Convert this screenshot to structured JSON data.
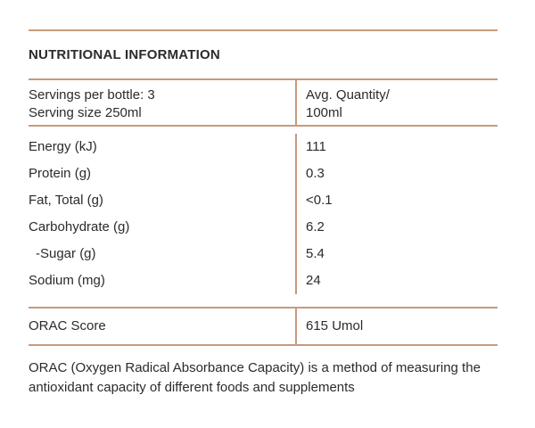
{
  "title": "NUTRITIONAL INFORMATION",
  "header": {
    "left_line1": "Servings per bottle: 3",
    "left_line2": "Serving size 250ml",
    "right_line1": "Avg. Quantity/",
    "right_line2": "100ml"
  },
  "rows": [
    {
      "label": "Energy (kJ)",
      "value": "111"
    },
    {
      "label": "Protein (g)",
      "value": "0.3"
    },
    {
      "label": "Fat, Total (g)",
      "value": "<0.1"
    },
    {
      "label": "Carbohydrate (g)",
      "value": "6.2"
    },
    {
      "label": "-Sugar (g)",
      "value": "5.4"
    },
    {
      "label": "Sodium (mg)",
      "value": "24"
    }
  ],
  "orac": {
    "label": "ORAC Score",
    "value": "615 Umol"
  },
  "note": "ORAC (Oxygen Radical Absorbance Capacity) is a method of measuring the antioxidant capacity of different foods and supplements",
  "colors": {
    "rule": "#c79a7c",
    "text": "#2b2b2b"
  }
}
